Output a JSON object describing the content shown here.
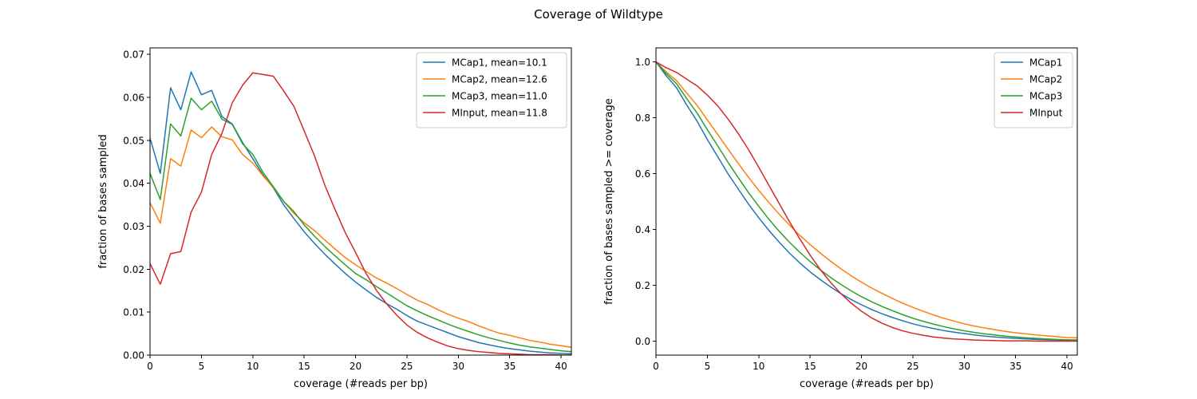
{
  "figure_title": "Coverage of Wildtype",
  "chart_data": [
    {
      "type": "line",
      "title": "",
      "xlabel": "coverage (#reads per bp)",
      "ylabel": "fraction of bases sampled",
      "xlim": [
        0,
        41
      ],
      "ylim": [
        0,
        0.0715
      ],
      "xticks": [
        0,
        5,
        10,
        15,
        20,
        25,
        30,
        35,
        40
      ],
      "xtick_labels": [
        "0",
        "5",
        "10",
        "15",
        "20",
        "25",
        "30",
        "35",
        "40"
      ],
      "yticks": [
        0,
        0.01,
        0.02,
        0.03,
        0.04,
        0.05,
        0.06,
        0.07
      ],
      "ytick_labels": [
        "0.00",
        "0.01",
        "0.02",
        "0.03",
        "0.04",
        "0.05",
        "0.06",
        "0.07"
      ],
      "grid": false,
      "legend_position": "top-right",
      "series": [
        {
          "name": "MCap1, mean=10.1",
          "color": "#1f77b4",
          "x": [
            0,
            1,
            2,
            3,
            4,
            5,
            6,
            7,
            8,
            9,
            10,
            11,
            12,
            13,
            14,
            15,
            16,
            17,
            18,
            19,
            20,
            21,
            22,
            23,
            24,
            25,
            26,
            27,
            28,
            29,
            30,
            31,
            32,
            33,
            34,
            35,
            36,
            37,
            38,
            39,
            40,
            41
          ],
          "y": [
            0.0505,
            0.0423,
            0.0622,
            0.0571,
            0.0659,
            0.0606,
            0.0616,
            0.0555,
            0.0538,
            0.0495,
            0.0457,
            0.0419,
            0.0389,
            0.035,
            0.0318,
            0.0287,
            0.026,
            0.0235,
            0.0212,
            0.019,
            0.017,
            0.0152,
            0.0135,
            0.012,
            0.0107,
            0.0092,
            0.0079,
            0.007,
            0.0061,
            0.0052,
            0.0043,
            0.0036,
            0.0029,
            0.0024,
            0.0019,
            0.0015,
            0.0012,
            0.0009,
            0.0007,
            0.0005,
            0.0004,
            0.0003
          ]
        },
        {
          "name": "MCap2, mean=12.6",
          "color": "#ff7f0e",
          "x": [
            0,
            1,
            2,
            3,
            4,
            5,
            6,
            7,
            8,
            9,
            10,
            11,
            12,
            13,
            14,
            15,
            16,
            17,
            18,
            19,
            20,
            21,
            22,
            23,
            24,
            25,
            26,
            27,
            28,
            29,
            30,
            31,
            32,
            33,
            34,
            35,
            36,
            37,
            38,
            39,
            40,
            41
          ],
          "y": [
            0.0355,
            0.0307,
            0.0457,
            0.044,
            0.0524,
            0.0506,
            0.0531,
            0.0508,
            0.0501,
            0.0467,
            0.0447,
            0.0417,
            0.039,
            0.0358,
            0.033,
            0.0308,
            0.029,
            0.0268,
            0.0247,
            0.0227,
            0.021,
            0.0195,
            0.018,
            0.0168,
            0.0155,
            0.0141,
            0.0128,
            0.0118,
            0.0106,
            0.0095,
            0.0086,
            0.0078,
            0.0068,
            0.0059,
            0.0051,
            0.0046,
            0.004,
            0.0034,
            0.003,
            0.0025,
            0.0022,
            0.0018
          ]
        },
        {
          "name": "MCap3, mean=11.0",
          "color": "#2ca02c",
          "x": [
            0,
            1,
            2,
            3,
            4,
            5,
            6,
            7,
            8,
            9,
            10,
            11,
            12,
            13,
            14,
            15,
            16,
            17,
            18,
            19,
            20,
            21,
            22,
            23,
            24,
            25,
            26,
            27,
            28,
            29,
            30,
            31,
            32,
            33,
            34,
            35,
            36,
            37,
            38,
            39,
            40,
            41
          ],
          "y": [
            0.0423,
            0.0362,
            0.0538,
            0.051,
            0.0598,
            0.0571,
            0.0591,
            0.0549,
            0.0537,
            0.0492,
            0.0467,
            0.0425,
            0.0392,
            0.0358,
            0.0334,
            0.0303,
            0.0277,
            0.0253,
            0.0231,
            0.021,
            0.019,
            0.0176,
            0.016,
            0.0145,
            0.013,
            0.0115,
            0.0103,
            0.0092,
            0.0082,
            0.0072,
            0.0063,
            0.0055,
            0.0047,
            0.004,
            0.0034,
            0.0028,
            0.0023,
            0.0019,
            0.0016,
            0.0013,
            0.001,
            0.0008
          ]
        },
        {
          "name": "MInput, mean=11.8",
          "color": "#d62728",
          "x": [
            0,
            1,
            2,
            3,
            4,
            5,
            6,
            7,
            8,
            9,
            10,
            11,
            12,
            13,
            14,
            15,
            16,
            17,
            18,
            19,
            20,
            21,
            22,
            23,
            24,
            25,
            26,
            27,
            28,
            29,
            30,
            31,
            32,
            33,
            34,
            35,
            36,
            37,
            38,
            39,
            40,
            41
          ],
          "y": [
            0.0213,
            0.0165,
            0.0236,
            0.0241,
            0.0333,
            0.0379,
            0.0467,
            0.0516,
            0.0587,
            0.0628,
            0.0657,
            0.0653,
            0.0649,
            0.0615,
            0.0579,
            0.0522,
            0.0464,
            0.0396,
            0.0339,
            0.0285,
            0.0239,
            0.0191,
            0.0152,
            0.012,
            0.0093,
            0.007,
            0.0053,
            0.004,
            0.003,
            0.0021,
            0.0015,
            0.0011,
            0.0008,
            0.0006,
            0.0004,
            0.0003,
            0.0002,
            0.0001,
            0.0001,
            0.0001,
            0.0,
            0.0
          ]
        }
      ]
    },
    {
      "type": "line",
      "title": "",
      "xlabel": "coverage (#reads per bp)",
      "ylabel": "fraction of bases sampled >= coverage",
      "xlim": [
        0,
        41
      ],
      "ylim": [
        -0.05,
        1.05
      ],
      "xticks": [
        0,
        5,
        10,
        15,
        20,
        25,
        30,
        35,
        40
      ],
      "xtick_labels": [
        "0",
        "5",
        "10",
        "15",
        "20",
        "25",
        "30",
        "35",
        "40"
      ],
      "yticks": [
        0,
        0.2,
        0.4,
        0.6,
        0.8,
        1.0
      ],
      "ytick_labels": [
        "0.0",
        "0.2",
        "0.4",
        "0.6",
        "0.8",
        "1.0"
      ],
      "grid": false,
      "legend_position": "top-right",
      "series": [
        {
          "name": "MCap1",
          "color": "#1f77b4",
          "x": [
            0,
            1,
            2,
            3,
            4,
            5,
            6,
            7,
            8,
            9,
            10,
            11,
            12,
            13,
            14,
            15,
            16,
            17,
            18,
            19,
            20,
            21,
            22,
            23,
            24,
            25,
            26,
            27,
            28,
            29,
            30,
            31,
            32,
            33,
            34,
            35,
            36,
            37,
            38,
            39,
            40,
            41
          ],
          "y": [
            1.0,
            0.95,
            0.907,
            0.845,
            0.788,
            0.722,
            0.661,
            0.6,
            0.545,
            0.491,
            0.442,
            0.396,
            0.354,
            0.315,
            0.28,
            0.248,
            0.22,
            0.194,
            0.17,
            0.149,
            0.13,
            0.113,
            0.098,
            0.085,
            0.073,
            0.062,
            0.053,
            0.045,
            0.038,
            0.032,
            0.027,
            0.022,
            0.018,
            0.015,
            0.012,
            0.01,
            0.008,
            0.006,
            0.005,
            0.004,
            0.003,
            0.003
          ]
        },
        {
          "name": "MCap2",
          "color": "#ff7f0e",
          "x": [
            0,
            1,
            2,
            3,
            4,
            5,
            6,
            7,
            8,
            9,
            10,
            11,
            12,
            13,
            14,
            15,
            16,
            17,
            18,
            19,
            20,
            21,
            22,
            23,
            24,
            25,
            26,
            27,
            28,
            29,
            30,
            31,
            32,
            33,
            34,
            35,
            36,
            37,
            38,
            39,
            40,
            41
          ],
          "y": [
            1.0,
            0.964,
            0.933,
            0.888,
            0.844,
            0.792,
            0.741,
            0.688,
            0.637,
            0.587,
            0.54,
            0.496,
            0.454,
            0.415,
            0.379,
            0.346,
            0.315,
            0.286,
            0.259,
            0.234,
            0.211,
            0.19,
            0.171,
            0.153,
            0.136,
            0.121,
            0.107,
            0.094,
            0.082,
            0.072,
            0.062,
            0.054,
            0.047,
            0.041,
            0.035,
            0.03,
            0.026,
            0.022,
            0.019,
            0.016,
            0.013,
            0.012
          ]
        },
        {
          "name": "MCap3",
          "color": "#2ca02c",
          "x": [
            0,
            1,
            2,
            3,
            4,
            5,
            6,
            7,
            8,
            9,
            10,
            11,
            12,
            13,
            14,
            15,
            16,
            17,
            18,
            19,
            20,
            21,
            22,
            23,
            24,
            25,
            26,
            27,
            28,
            29,
            30,
            31,
            32,
            33,
            34,
            35,
            36,
            37,
            38,
            39,
            40,
            41
          ],
          "y": [
            1.0,
            0.958,
            0.922,
            0.868,
            0.817,
            0.757,
            0.7,
            0.641,
            0.586,
            0.532,
            0.483,
            0.436,
            0.393,
            0.354,
            0.318,
            0.285,
            0.255,
            0.228,
            0.203,
            0.18,
            0.159,
            0.141,
            0.124,
            0.109,
            0.095,
            0.082,
            0.071,
            0.061,
            0.052,
            0.044,
            0.037,
            0.031,
            0.026,
            0.022,
            0.018,
            0.015,
            0.012,
            0.01,
            0.008,
            0.006,
            0.005,
            0.004
          ]
        },
        {
          "name": "MInput",
          "color": "#d62728",
          "x": [
            0,
            1,
            2,
            3,
            4,
            5,
            6,
            7,
            8,
            9,
            10,
            11,
            12,
            13,
            14,
            15,
            16,
            17,
            18,
            19,
            20,
            21,
            22,
            23,
            24,
            25,
            26,
            27,
            28,
            29,
            30,
            31,
            32,
            33,
            34,
            35,
            36,
            37,
            38,
            39,
            40,
            41
          ],
          "y": [
            1.0,
            0.979,
            0.962,
            0.938,
            0.914,
            0.881,
            0.843,
            0.796,
            0.744,
            0.686,
            0.623,
            0.557,
            0.492,
            0.427,
            0.366,
            0.308,
            0.256,
            0.21,
            0.17,
            0.136,
            0.107,
            0.083,
            0.064,
            0.049,
            0.037,
            0.028,
            0.021,
            0.015,
            0.011,
            0.008,
            0.006,
            0.004,
            0.003,
            0.002,
            0.001,
            0.001,
            0.001,
            0.0,
            0.0,
            0.0,
            0.0,
            0.0
          ]
        }
      ]
    }
  ]
}
